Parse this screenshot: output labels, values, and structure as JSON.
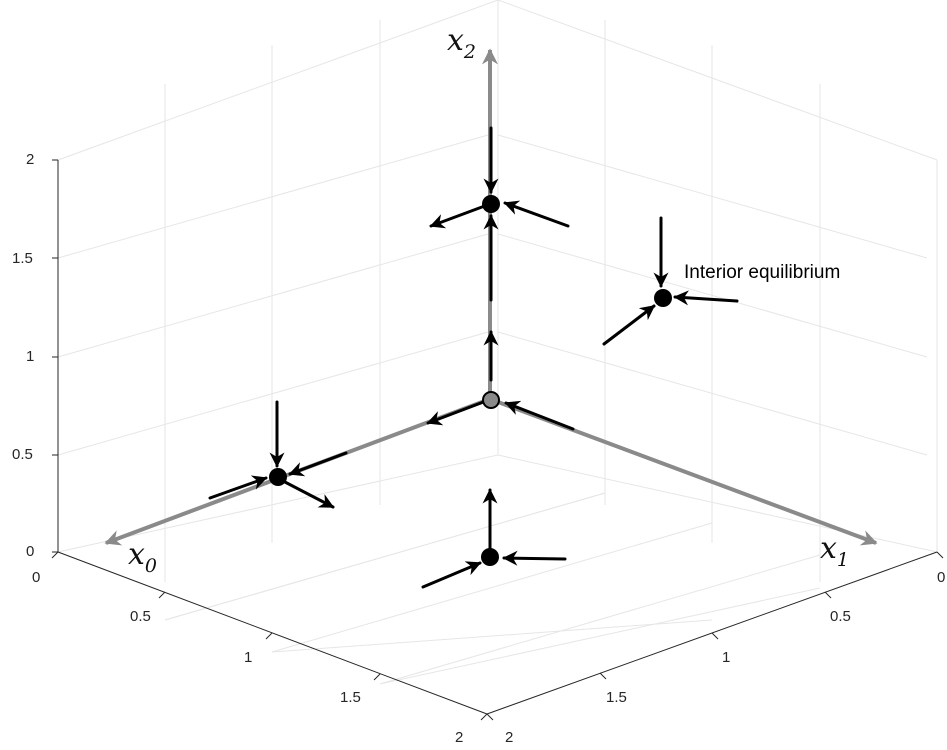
{
  "z_ticks": [
    "0",
    "0.5",
    "1",
    "1.5",
    "2"
  ],
  "x0_ticks": [
    "0",
    "0.5",
    "1",
    "1.5",
    "2"
  ],
  "x1_ticks": [
    "0",
    "0.5",
    "1",
    "1.5",
    "2"
  ],
  "axis_labels": {
    "x0": {
      "base": "x",
      "sub": "0"
    },
    "x1": {
      "base": "x",
      "sub": "1"
    },
    "x2": {
      "base": "x",
      "sub": "2"
    }
  },
  "annotation": "Interior equilibrium",
  "colors": {
    "axis_arrows": "#8a8a8a",
    "vectors": "#000000",
    "grid": "#e6e6e6"
  }
}
